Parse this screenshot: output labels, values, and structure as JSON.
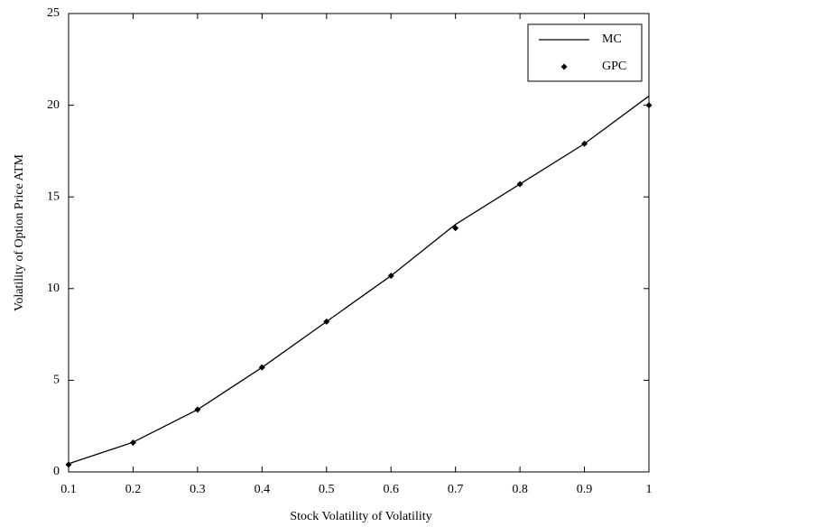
{
  "chart_data": {
    "type": "line",
    "xlabel": "Stock Volatility of Volatility",
    "ylabel": "Volatility of Option Price ATM",
    "x": [
      0.1,
      0.2,
      0.3,
      0.4,
      0.5,
      0.6,
      0.7,
      0.8,
      0.9,
      1
    ],
    "series": [
      {
        "name": "MC",
        "color": "#000000",
        "style": "line",
        "values": [
          0.45,
          1.62,
          3.4,
          5.7,
          8.2,
          10.7,
          13.5,
          15.7,
          17.9,
          20.5
        ]
      },
      {
        "name": "GPC",
        "color": "#000000",
        "style": "marker",
        "values": [
          0.4,
          1.6,
          3.4,
          5.7,
          8.2,
          10.7,
          13.3,
          15.7,
          17.9,
          20.0
        ]
      }
    ],
    "xlim": [
      0.1,
      1
    ],
    "xticks": [
      0.1,
      0.2,
      0.3,
      0.4,
      0.5,
      0.6,
      0.7,
      0.8,
      0.9,
      1
    ],
    "ylim": [
      0,
      25
    ],
    "yticks": [
      0,
      5,
      10,
      15,
      20,
      25
    ],
    "grid": false,
    "legend": "upper right"
  }
}
